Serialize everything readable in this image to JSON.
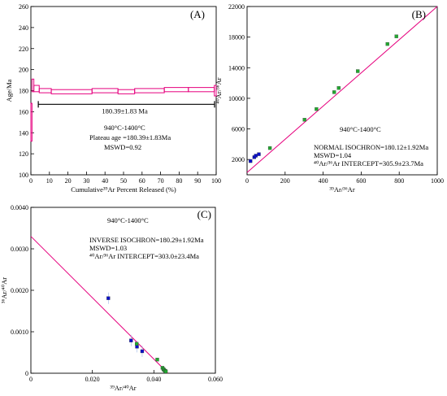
{
  "chart_data": [
    {
      "panel": "A",
      "type": "line",
      "panel_label": "(A)",
      "xlabel": "Cumulative³⁹Ar Percent Released (%)",
      "ylabel": "Age/Ma",
      "xlim": [
        0,
        100
      ],
      "ylim": [
        100,
        260
      ],
      "xticks": [
        "0",
        "10",
        "20",
        "30",
        "40",
        "50",
        "60",
        "70",
        "80",
        "90",
        "100"
      ],
      "yticks": [
        "100",
        "120",
        "140",
        "160",
        "180",
        "200",
        "220",
        "240",
        "260"
      ],
      "steps": [
        {
          "start": 0,
          "end": 0.6,
          "age": 150,
          "err": 18
        },
        {
          "start": 0.6,
          "end": 1.6,
          "age": 185,
          "err": 6
        },
        {
          "start": 1.6,
          "end": 4.5,
          "age": 182,
          "err": 3
        },
        {
          "start": 4.5,
          "end": 11,
          "age": 180,
          "err": 2
        },
        {
          "start": 11,
          "end": 33,
          "age": 179,
          "err": 2
        },
        {
          "start": 33,
          "end": 47,
          "age": 180,
          "err": 2
        },
        {
          "start": 47,
          "end": 56,
          "age": 179,
          "err": 2
        },
        {
          "start": 56,
          "end": 72,
          "age": 180,
          "err": 2
        },
        {
          "start": 72,
          "end": 85,
          "age": 181,
          "err": 2
        },
        {
          "start": 85,
          "end": 99,
          "age": 181,
          "err": 2
        },
        {
          "start": 99,
          "end": 100,
          "age": 180,
          "err": 5
        }
      ],
      "plateau": {
        "from": 4,
        "to": 100,
        "y": 167,
        "label": "180.39±1.83 Ma"
      },
      "annotations": [
        "940°C-1400°C",
        "Plateau age =180.39±1.83Ma",
        "MSWD=0.92"
      ],
      "colors": {
        "steps": "#e6007e",
        "line": "#000000"
      }
    },
    {
      "panel": "B",
      "type": "scatter",
      "panel_label": "(B)",
      "xlabel": "³⁹Ar/³⁶Ar",
      "ylabel": "⁴⁰Ar/³⁶Ar",
      "xlim": [
        0,
        1000
      ],
      "ylim": [
        0,
        22000
      ],
      "xticks": [
        "0",
        "200",
        "400",
        "600",
        "800",
        "1000"
      ],
      "yticks": [
        "2000",
        "6000",
        "10000",
        "14000",
        "18000",
        "22000"
      ],
      "points": [
        {
          "x": 18,
          "y": 1800,
          "color": "blue"
        },
        {
          "x": 38,
          "y": 2300,
          "color": "blue"
        },
        {
          "x": 46,
          "y": 2500,
          "color": "blue"
        },
        {
          "x": 62,
          "y": 2700,
          "color": "blue"
        },
        {
          "x": 120,
          "y": 3500,
          "color": "green"
        },
        {
          "x": 302,
          "y": 7200,
          "color": "green"
        },
        {
          "x": 365,
          "y": 8600,
          "color": "green"
        },
        {
          "x": 458,
          "y": 10800,
          "color": "green"
        },
        {
          "x": 482,
          "y": 11350,
          "color": "green"
        },
        {
          "x": 582,
          "y": 13550,
          "color": "green"
        },
        {
          "x": 738,
          "y": 17100,
          "color": "green"
        },
        {
          "x": 785,
          "y": 18100,
          "color": "green"
        }
      ],
      "fit_line": {
        "x": [
          0,
          1000
        ],
        "y": [
          305.9,
          22000
        ]
      },
      "annotations": [
        "940°C-1400°C",
        "NORMAL ISOCHRON=180.12±1.92Ma",
        "MSWD=1.04",
        "⁴⁰Ar/³⁶Ar INTERCEPT=305.9±23.7Ma"
      ],
      "colors": {
        "line": "#e6007e",
        "blue": "#0a10c8",
        "green": "#22a830"
      }
    },
    {
      "panel": "C",
      "type": "scatter",
      "panel_label": "(C)",
      "xlabel": "³⁹Ar/⁴⁰Ar",
      "ylabel": "³⁶Ar/⁴⁰Ar",
      "xlim": [
        0,
        0.06
      ],
      "ylim": [
        0,
        0.004
      ],
      "xticks": [
        "0",
        "0.020",
        "0.040",
        "0.060"
      ],
      "yticks": [
        "0",
        "0.0010",
        "0.0020",
        "0.0030",
        "0.0040"
      ],
      "points": [
        {
          "x": 0.0252,
          "y": 0.00181,
          "color": "blue"
        },
        {
          "x": 0.0326,
          "y": 0.00079,
          "color": "blue"
        },
        {
          "x": 0.0345,
          "y": 0.00064,
          "color": "blue"
        },
        {
          "x": 0.0362,
          "y": 0.00053,
          "color": "blue"
        },
        {
          "x": 0.0344,
          "y": 0.00071,
          "color": "green"
        },
        {
          "x": 0.0411,
          "y": 0.00033,
          "color": "green"
        },
        {
          "x": 0.0428,
          "y": 0.00013,
          "color": "green"
        },
        {
          "x": 0.0431,
          "y": 0.0001,
          "color": "green"
        },
        {
          "x": 0.0433,
          "y": 8e-05,
          "color": "green"
        },
        {
          "x": 0.0436,
          "y": 6e-05,
          "color": "green"
        },
        {
          "x": 0.0438,
          "y": 5e-05,
          "color": "green"
        },
        {
          "x": 0.0439,
          "y": 4e-05,
          "color": "green"
        }
      ],
      "fit_line": {
        "x": [
          0,
          0.0446
        ],
        "y": [
          0.0033,
          0
        ]
      },
      "annotations": [
        "940°C-1400°C",
        "INVERSE ISOCHRON=180.29±1.92Ma",
        "MSWD=1.03",
        "⁴⁰Ar/³⁶Ar INTERCEPT=303.0±23.4Ma"
      ],
      "colors": {
        "line": "#e6007e",
        "blue": "#0a10c8",
        "green": "#22a830"
      }
    }
  ]
}
